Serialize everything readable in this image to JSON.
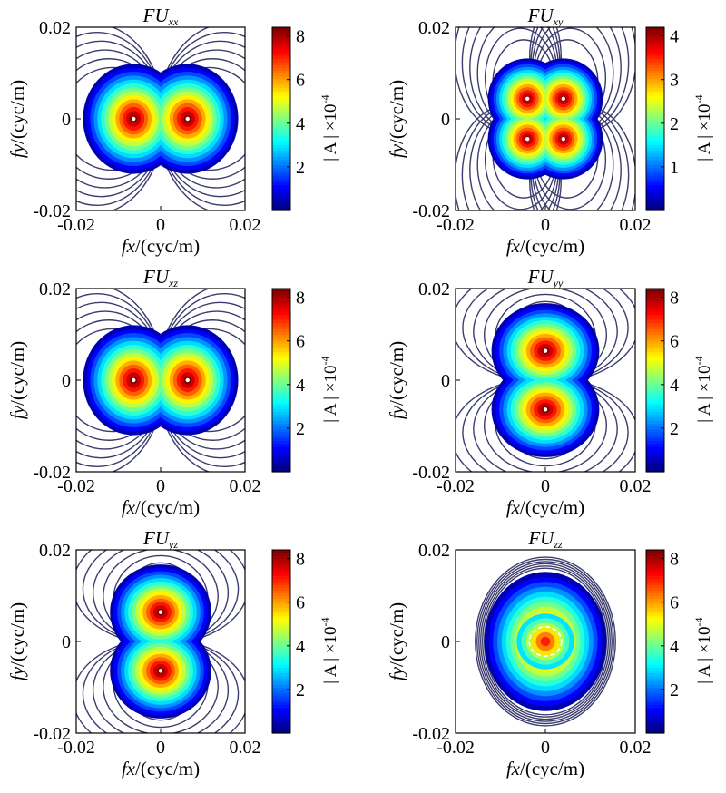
{
  "chart_data": [
    {
      "type": "heatmap",
      "title": "FU",
      "title_sub": "xx",
      "pattern": "two-lobes-x",
      "xlabel_italic": "fx",
      "xlabel_rest": "/(cyc/m)",
      "ylabel_italic": "fy",
      "ylabel_rest": "/(cyc/m)",
      "xlim": [
        -0.02,
        0.02
      ],
      "ylim": [
        -0.02,
        0.02
      ],
      "xticks": [
        "-0.02",
        "0",
        "0.02"
      ],
      "yticks": [
        "0.02",
        "0",
        "-0.02"
      ],
      "colorbar": {
        "min": 0,
        "max": 8.4,
        "ticks": [
          "2",
          "4",
          "6",
          "8"
        ],
        "tick_values": [
          2,
          4,
          6,
          8
        ],
        "label": "| A | ×10",
        "label_exp": "-4",
        "colormap": "jet"
      }
    },
    {
      "type": "heatmap",
      "title": "FU",
      "title_sub": "xy",
      "pattern": "four-lobes",
      "xlabel_italic": "fx",
      "xlabel_rest": "/(cyc/m)",
      "ylabel_italic": "fy",
      "ylabel_rest": "/(cyc/m)",
      "xlim": [
        -0.02,
        0.02
      ],
      "ylim": [
        -0.02,
        0.02
      ],
      "xticks": [
        "-0.02",
        "0",
        "0.02"
      ],
      "yticks": [
        "0.02",
        "0",
        "-0.02"
      ],
      "colorbar": {
        "min": 0,
        "max": 4.2,
        "ticks": [
          "1",
          "2",
          "3",
          "4"
        ],
        "tick_values": [
          1,
          2,
          3,
          4
        ],
        "label": "| A | ×10",
        "label_exp": "-4",
        "colormap": "jet"
      }
    },
    {
      "type": "heatmap",
      "title": "FU",
      "title_sub": "xz",
      "pattern": "two-lobes-x",
      "xlabel_italic": "fx",
      "xlabel_rest": "/(cyc/m)",
      "ylabel_italic": "fy",
      "ylabel_rest": "/(cyc/m)",
      "xlim": [
        -0.02,
        0.02
      ],
      "ylim": [
        -0.02,
        0.02
      ],
      "xticks": [
        "-0.02",
        "0",
        "0.02"
      ],
      "yticks": [
        "0.02",
        "0",
        "-0.02"
      ],
      "colorbar": {
        "min": 0,
        "max": 8.4,
        "ticks": [
          "2",
          "4",
          "6",
          "8"
        ],
        "tick_values": [
          2,
          4,
          6,
          8
        ],
        "label": "| A | ×10",
        "label_exp": "-4",
        "colormap": "jet"
      }
    },
    {
      "type": "heatmap",
      "title": "FU",
      "title_sub": "yy",
      "pattern": "two-lobes-y",
      "xlabel_italic": "fx",
      "xlabel_rest": "/(cyc/m)",
      "ylabel_italic": "fy",
      "ylabel_rest": "/(cyc/m)",
      "xlim": [
        -0.02,
        0.02
      ],
      "ylim": [
        -0.02,
        0.02
      ],
      "xticks": [
        "-0.02",
        "0",
        "0.02"
      ],
      "yticks": [
        "0.02",
        "0",
        "-0.02"
      ],
      "colorbar": {
        "min": 0,
        "max": 8.4,
        "ticks": [
          "2",
          "4",
          "6",
          "8"
        ],
        "tick_values": [
          2,
          4,
          6,
          8
        ],
        "label": "| A | ×10",
        "label_exp": "-4",
        "colormap": "jet"
      }
    },
    {
      "type": "heatmap",
      "title": "FU",
      "title_sub": "yz",
      "pattern": "two-lobes-y",
      "xlabel_italic": "fx",
      "xlabel_rest": "/(cyc/m)",
      "ylabel_italic": "fy",
      "ylabel_rest": "/(cyc/m)",
      "xlim": [
        -0.02,
        0.02
      ],
      "ylim": [
        -0.02,
        0.02
      ],
      "xticks": [
        "-0.02",
        "0",
        "0.02"
      ],
      "yticks": [
        "0.02",
        "0",
        "-0.02"
      ],
      "colorbar": {
        "min": 0,
        "max": 8.4,
        "ticks": [
          "2",
          "4",
          "6",
          "8"
        ],
        "tick_values": [
          2,
          4,
          6,
          8
        ],
        "label": "| A | ×10",
        "label_exp": "-4",
        "colormap": "jet"
      }
    },
    {
      "type": "heatmap",
      "title": "FU",
      "title_sub": "zz",
      "pattern": "ring",
      "xlabel_italic": "fx",
      "xlabel_rest": "/(cyc/m)",
      "ylabel_italic": "fy",
      "ylabel_rest": "/(cyc/m)",
      "xlim": [
        -0.02,
        0.02
      ],
      "ylim": [
        -0.02,
        0.02
      ],
      "xticks": [
        "-0.02",
        "0",
        "0.02"
      ],
      "yticks": [
        "0.02",
        "0",
        "-0.02"
      ],
      "colorbar": {
        "min": 0,
        "max": 8.4,
        "ticks": [
          "2",
          "4",
          "6",
          "8"
        ],
        "tick_values": [
          2,
          4,
          6,
          8
        ],
        "label": "| A | ×10",
        "label_exp": "-4",
        "colormap": "jet"
      }
    }
  ]
}
